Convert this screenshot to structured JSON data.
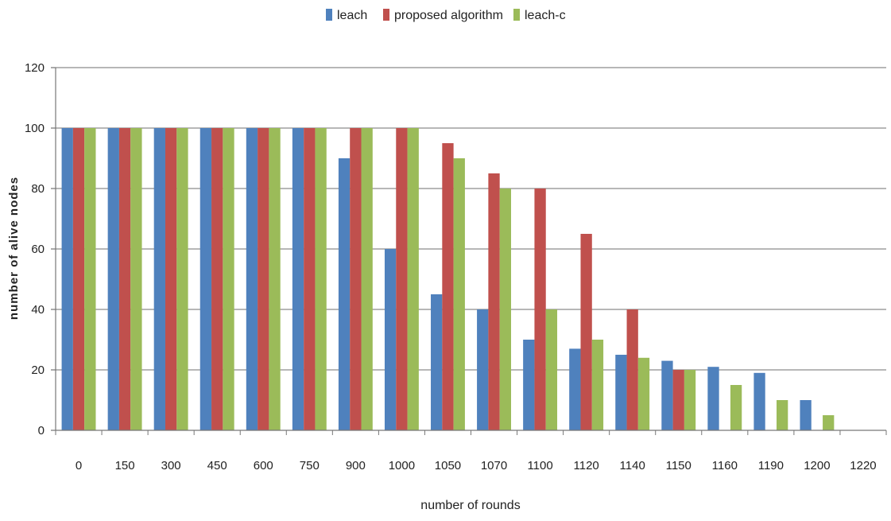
{
  "chart_data": {
    "type": "bar",
    "title": "",
    "xlabel": "number of rounds",
    "ylabel": "number of alive nodes",
    "ylim": [
      0,
      120
    ],
    "yticks": [
      0,
      20,
      40,
      60,
      80,
      100,
      120
    ],
    "grid": true,
    "legend_position": "top-center",
    "categories": [
      "0",
      "150",
      "300",
      "450",
      "600",
      "750",
      "900",
      "1000",
      "1050",
      "1070",
      "1100",
      "1120",
      "1140",
      "1150",
      "1160",
      "1190",
      "1200",
      "1220"
    ],
    "series": [
      {
        "name": "leach",
        "color": "#4F81BD",
        "values": [
          100,
          100,
          100,
          100,
          100,
          100,
          90,
          60,
          45,
          40,
          30,
          27,
          25,
          23,
          21,
          19,
          10,
          0
        ]
      },
      {
        "name": "proposed algorithm",
        "color": "#C0504D",
        "values": [
          100,
          100,
          100,
          100,
          100,
          100,
          100,
          100,
          95,
          85,
          80,
          65,
          40,
          20,
          0,
          0,
          0,
          0
        ]
      },
      {
        "name": "leach-c",
        "color": "#9BBB59",
        "values": [
          100,
          100,
          100,
          100,
          100,
          100,
          100,
          100,
          90,
          80,
          40,
          30,
          24,
          20,
          15,
          10,
          5,
          0
        ]
      }
    ]
  }
}
